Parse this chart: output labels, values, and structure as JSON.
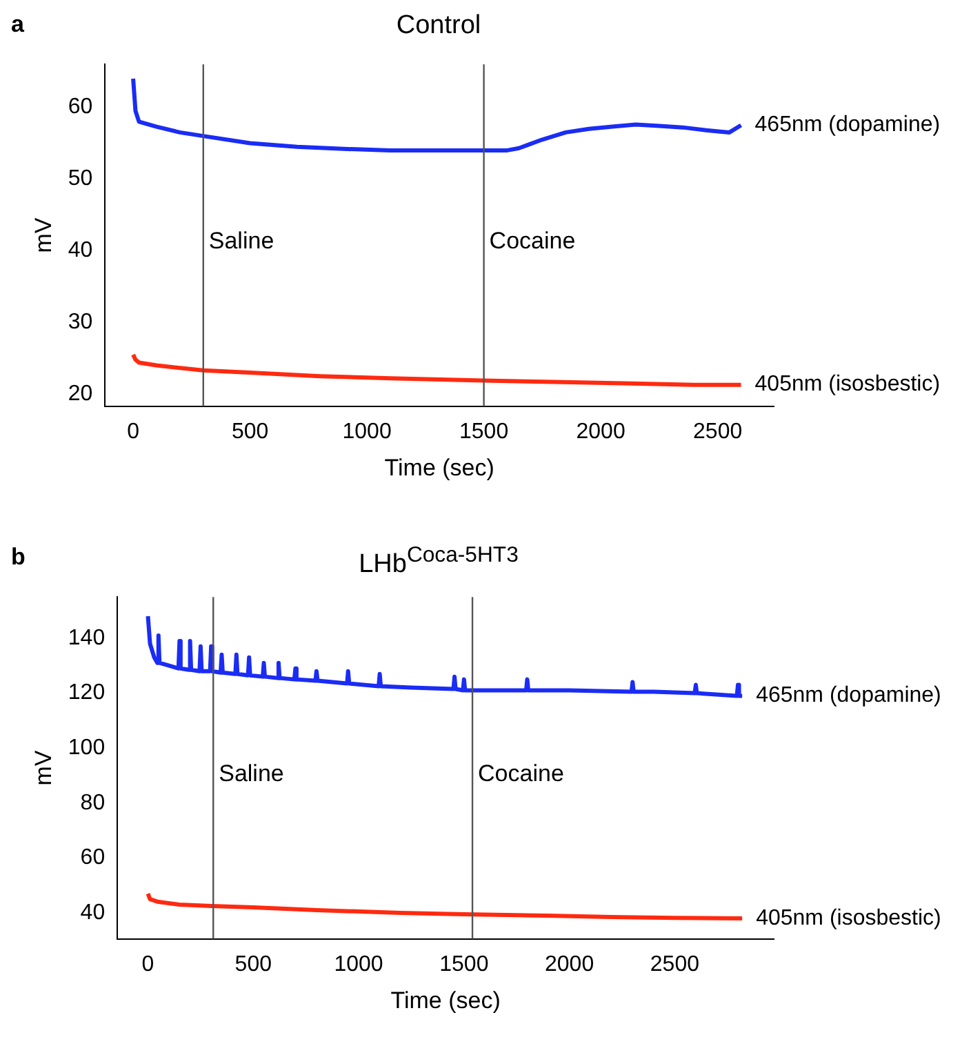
{
  "chart_data": [
    {
      "type": "line",
      "title": "Control",
      "xlabel": "Time (sec)",
      "ylabel": "mV",
      "annotations": [
        "a"
      ],
      "xlim": [
        -120,
        2740
      ],
      "xticks": [
        0,
        500,
        1000,
        1500,
        2000,
        2500
      ],
      "ylim": [
        18.3,
        66
      ],
      "yticks": [
        20,
        30,
        40,
        50,
        60
      ],
      "grid": false,
      "legend": false,
      "marker": "none",
      "ref_lines": [
        {
          "axis": "x",
          "value": 300,
          "label": "Saline"
        },
        {
          "axis": "x",
          "value": 1500,
          "label": "Cocaine"
        }
      ],
      "series": [
        {
          "name": "465nm (dopamine)",
          "color": "#1a2cf5",
          "x": [
            0,
            10,
            25,
            100,
            200,
            300,
            500,
            700,
            900,
            1100,
            1300,
            1500,
            1600,
            1650,
            1750,
            1850,
            1950,
            2050,
            2150,
            2250,
            2350,
            2450,
            2550,
            2600
          ],
          "values": [
            64,
            59.5,
            58,
            57.3,
            56.5,
            56,
            55,
            54.5,
            54.2,
            54,
            54,
            54,
            54,
            54.3,
            55.5,
            56.5,
            57,
            57.3,
            57.6,
            57.4,
            57.2,
            56.8,
            56.5,
            57.5
          ]
        },
        {
          "name": "405nm (isosbestic)",
          "color": "#ff2a10",
          "x": [
            0,
            10,
            25,
            100,
            300,
            500,
            800,
            1100,
            1500,
            1800,
            2100,
            2400,
            2600
          ],
          "values": [
            25.5,
            24.8,
            24.4,
            24,
            23.3,
            23,
            22.5,
            22.2,
            21.9,
            21.7,
            21.5,
            21.3,
            21.3
          ]
        }
      ]
    },
    {
      "type": "line",
      "title": "LHb$^{Coca-5HT3}$",
      "xlabel": "Time (sec)",
      "ylabel": "mV",
      "annotations": [
        "b"
      ],
      "xlim": [
        -145,
        2970
      ],
      "xticks": [
        0,
        500,
        1000,
        1500,
        2000,
        2500
      ],
      "ylim": [
        30.5,
        155
      ],
      "yticks": [
        40,
        60,
        80,
        100,
        120,
        140
      ],
      "grid": false,
      "legend": false,
      "marker": "none",
      "ref_lines": [
        {
          "axis": "x",
          "value": 310,
          "label": "Saline"
        },
        {
          "axis": "x",
          "value": 1540,
          "label": "Cocaine"
        }
      ],
      "series": [
        {
          "name": "465nm (dopamine)",
          "color": "#1a2cf5",
          "x": [
            0,
            10,
            30,
            45,
            50,
            55,
            100,
            145,
            150,
            155,
            195,
            200,
            205,
            245,
            250,
            255,
            295,
            300,
            305,
            345,
            350,
            355,
            415,
            420,
            425,
            475,
            480,
            485,
            545,
            550,
            555,
            615,
            620,
            625,
            695,
            700,
            705,
            795,
            800,
            805,
            945,
            950,
            955,
            1095,
            1100,
            1105,
            1250,
            1450,
            1455,
            1460,
            1495,
            1500,
            1505,
            1795,
            1800,
            1805,
            2000,
            2295,
            2300,
            2305,
            2400,
            2595,
            2600,
            2605,
            2795,
            2800,
            2805,
            2820
          ],
          "values": [
            148,
            138,
            133,
            131,
            141,
            131,
            130,
            129,
            139,
            129,
            128.5,
            139,
            128.5,
            128,
            137,
            128,
            128,
            137,
            128,
            127.5,
            134,
            127.5,
            127,
            134,
            127,
            126.5,
            133,
            126.5,
            126,
            131,
            126,
            125.5,
            131,
            125.5,
            125,
            129,
            125,
            124.5,
            128,
            124.5,
            123.5,
            128,
            123.5,
            122.5,
            127,
            122.5,
            122,
            121.5,
            126,
            121.5,
            121,
            125,
            121,
            121,
            125,
            121,
            121,
            120.5,
            124,
            120.5,
            120.5,
            120,
            123,
            120,
            119,
            123,
            119,
            119
          ]
        },
        {
          "name": "405nm (isosbestic)",
          "color": "#ff2a10",
          "x": [
            0,
            10,
            50,
            150,
            300,
            500,
            800,
            1200,
            1500,
            1900,
            2200,
            2500,
            2820
          ],
          "values": [
            47,
            45,
            44,
            43,
            42.5,
            42,
            41,
            40,
            39.5,
            39,
            38.5,
            38.2,
            38
          ]
        }
      ]
    }
  ]
}
